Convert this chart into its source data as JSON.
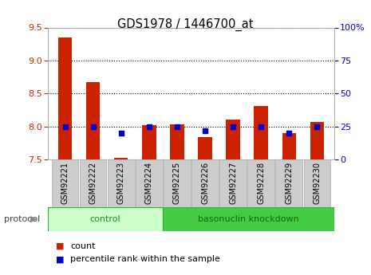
{
  "title": "GDS1978 / 1446700_at",
  "samples": [
    "GSM92221",
    "GSM92222",
    "GSM92223",
    "GSM92224",
    "GSM92225",
    "GSM92226",
    "GSM92227",
    "GSM92228",
    "GSM92229",
    "GSM92230"
  ],
  "counts": [
    9.35,
    8.67,
    7.53,
    8.02,
    8.03,
    7.84,
    8.1,
    8.31,
    7.9,
    8.07
  ],
  "percentile_ranks": [
    25,
    25,
    20,
    25,
    25,
    22,
    25,
    25,
    20,
    25
  ],
  "groups": [
    {
      "label": "control",
      "n_samples": 4,
      "color": "#ccffcc",
      "border": "#33aa33"
    },
    {
      "label": "basonuclin knockdown",
      "n_samples": 6,
      "color": "#44cc44",
      "border": "#33aa33"
    }
  ],
  "ylim": [
    7.5,
    9.5
  ],
  "yticks": [
    7.5,
    8.0,
    8.5,
    9.0,
    9.5
  ],
  "y2lim": [
    0,
    100
  ],
  "y2ticks": [
    0,
    25,
    50,
    75,
    100
  ],
  "bar_color": "#cc2200",
  "dot_color": "#0000cc",
  "bar_width": 0.5,
  "protocol_label": "protocol",
  "legend_count_label": "count",
  "legend_percentile_label": "percentile rank within the sample",
  "grid_color": "#000000",
  "tick_label_color_left": "#cc2200",
  "tick_label_color_right": "#0000cc",
  "y2tick_labels": [
    "0",
    "25",
    "50",
    "75",
    "100%"
  ],
  "xlabel_box_color": "#cccccc",
  "xlabel_box_edge": "#aaaaaa"
}
